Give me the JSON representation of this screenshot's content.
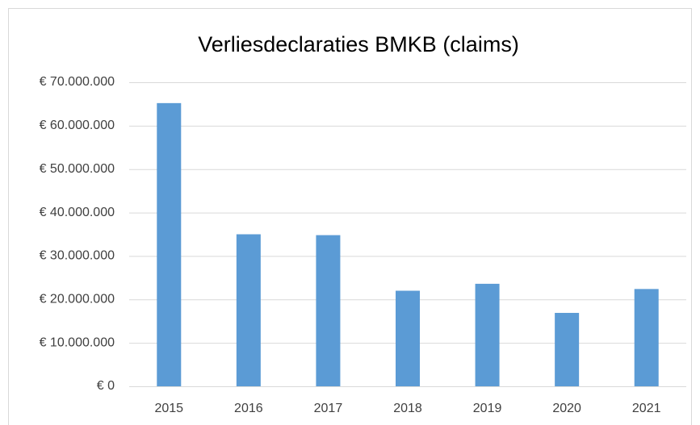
{
  "chart_data": {
    "type": "bar",
    "title": "Verliesdeclaraties BMKB (claims)",
    "categories": [
      "2015",
      "2016",
      "2017",
      "2018",
      "2019",
      "2020",
      "2021"
    ],
    "values": [
      65200000,
      35000000,
      34800000,
      22000000,
      23600000,
      16900000,
      22400000
    ],
    "color": "#5b9bd5",
    "ylim": [
      0,
      70000000
    ],
    "yticks": [
      {
        "value": 0,
        "label": "€ 0"
      },
      {
        "value": 10000000,
        "label": "€ 10.000.000"
      },
      {
        "value": 20000000,
        "label": "€ 20.000.000"
      },
      {
        "value": 30000000,
        "label": "€ 30.000.000"
      },
      {
        "value": 40000000,
        "label": "€ 40.000.000"
      },
      {
        "value": 50000000,
        "label": "€ 50.000.000"
      },
      {
        "value": 60000000,
        "label": "€ 60.000.000"
      },
      {
        "value": 70000000,
        "label": "€ 70.000.000"
      }
    ],
    "grid": true
  }
}
